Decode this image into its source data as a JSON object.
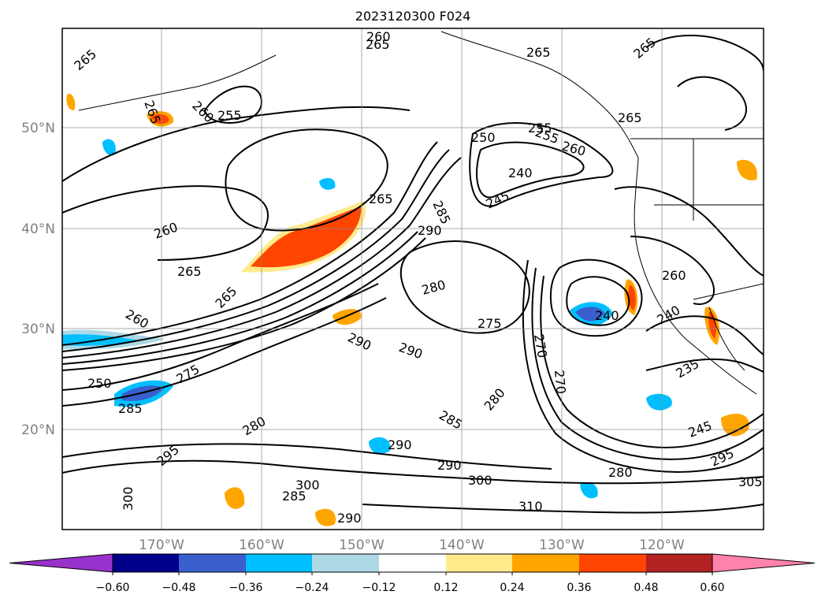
{
  "title": "2023120300 F024",
  "map": {
    "lat_labels": [
      "50°N",
      "40°N",
      "30°N",
      "20°N"
    ],
    "lon_labels": [
      "170°W",
      "160°W",
      "150°W",
      "140°W",
      "130°W",
      "120°W"
    ],
    "contour_labels": [
      "265",
      "260",
      "265",
      "265",
      "255",
      "260",
      "265",
      "265",
      "255",
      "250",
      "255",
      "260",
      "265",
      "240",
      "245",
      "285",
      "290",
      "265",
      "260",
      "265",
      "265",
      "280",
      "260",
      "275",
      "240",
      "240",
      "290",
      "290",
      "270",
      "235",
      "250",
      "285",
      "275",
      "270",
      "280",
      "285",
      "280",
      "245",
      "290",
      "290",
      "295",
      "300",
      "305",
      "310",
      "280",
      "300",
      "285",
      "290",
      "300",
      "295",
      "260"
    ]
  },
  "colorbar": {
    "tick_labels": [
      "−0.60",
      "−0.48",
      "−0.36",
      "−0.24",
      "−0.12",
      "0.12",
      "0.24",
      "0.36",
      "0.48",
      "0.60"
    ],
    "colors": [
      "#9932cc",
      "#00008b",
      "#3a5fcd",
      "#00bfff",
      "#add8e6",
      "#ffffff",
      "#ffeb8c",
      "#ffa500",
      "#ff4500",
      "#b22222",
      "#ff82ab"
    ]
  }
}
